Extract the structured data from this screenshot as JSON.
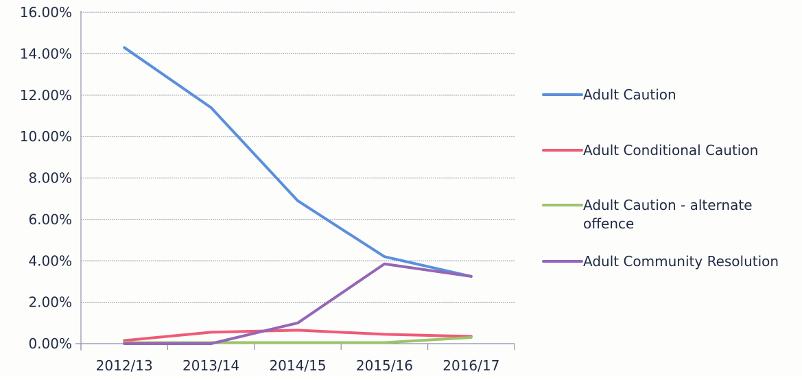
{
  "chart_data": {
    "type": "line",
    "title": "",
    "xlabel": "",
    "ylabel": "",
    "categories": [
      "2012/13",
      "2013/14",
      "2014/15",
      "2015/16",
      "2016/17"
    ],
    "ylim": [
      0,
      16
    ],
    "y_ticks": [
      0,
      2,
      4,
      6,
      8,
      10,
      12,
      14,
      16
    ],
    "y_tick_labels": [
      "0.00%",
      "2.00%",
      "4.00%",
      "6.00%",
      "8.00%",
      "10.00%",
      "12.00%",
      "14.00%",
      "16.00%"
    ],
    "grid": true,
    "legend_position": "right",
    "series": [
      {
        "name": "Adult Caution",
        "name_lines": [
          "Adult Caution"
        ],
        "color": "#5b8fdc",
        "values": [
          14.3,
          11.4,
          6.9,
          4.2,
          3.25
        ]
      },
      {
        "name": "Adult Conditional Caution",
        "name_lines": [
          "Adult Conditional Caution"
        ],
        "color": "#ee5b78",
        "values": [
          0.15,
          0.55,
          0.65,
          0.45,
          0.35
        ]
      },
      {
        "name": "Adult Caution - alternate offence",
        "name_lines": [
          "Adult Caution - alternate",
          "offence"
        ],
        "color": "#9cc46a",
        "values": [
          0.05,
          0.05,
          0.05,
          0.05,
          0.3
        ]
      },
      {
        "name": "Adult Community Resolution",
        "name_lines": [
          "Adult Community Resolution"
        ],
        "color": "#9466b8",
        "values": [
          0.0,
          0.0,
          1.0,
          3.85,
          3.25
        ]
      }
    ]
  }
}
